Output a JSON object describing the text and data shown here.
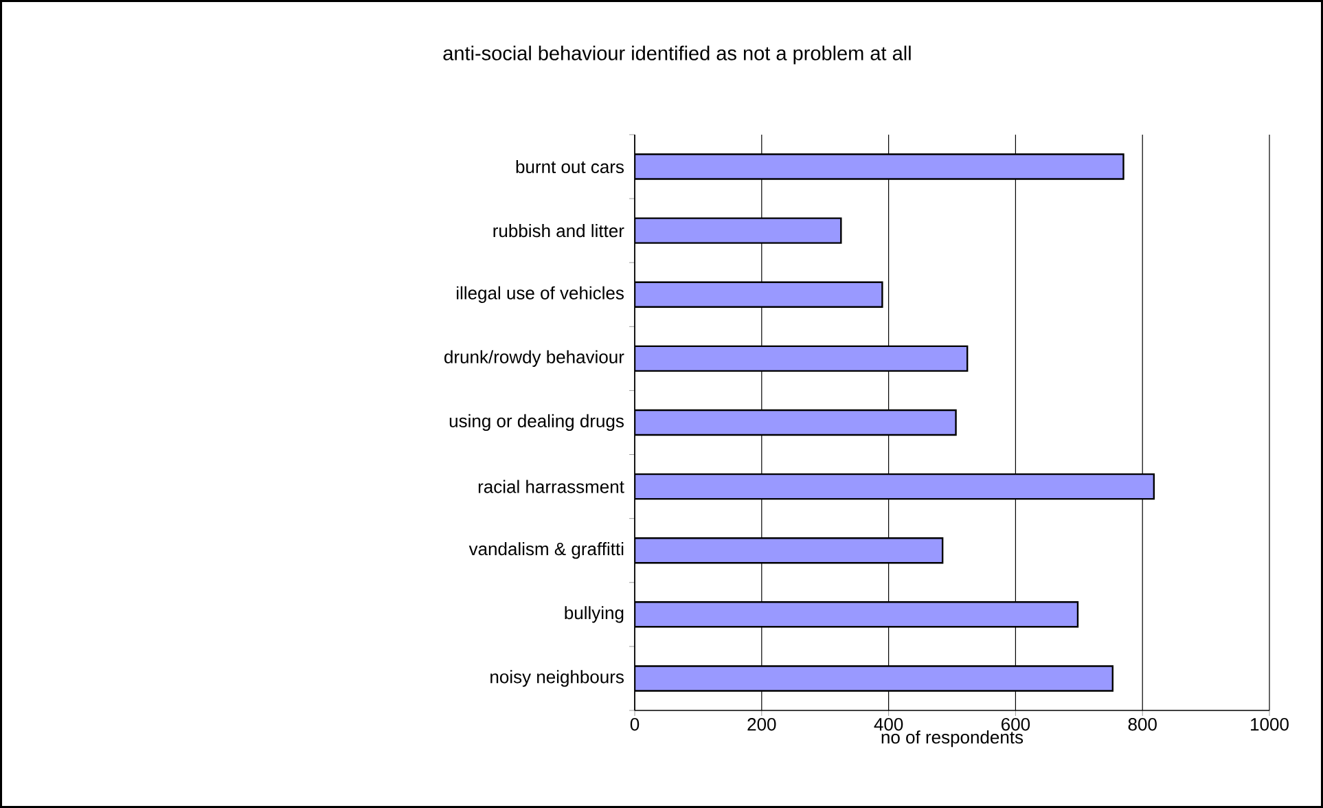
{
  "chart_data": {
    "type": "bar",
    "orientation": "horizontal",
    "title": "anti-social behaviour identified as not a problem at all",
    "xlabel": "no of respondents",
    "categories": [
      "burnt out cars",
      "rubbish and litter",
      "illegal use of vehicles",
      "drunk/rowdy behaviour",
      "using or dealing drugs",
      "racial harrassment",
      "vandalism & graffitti",
      "bullying",
      "noisy neighbours"
    ],
    "values": [
      770,
      325,
      390,
      524,
      506,
      818,
      485,
      698,
      753
    ],
    "color": "#9999ff",
    "xlim": [
      0,
      1000
    ],
    "xticks": [
      0,
      200,
      400,
      600,
      800,
      1000
    ],
    "grid": "x"
  }
}
